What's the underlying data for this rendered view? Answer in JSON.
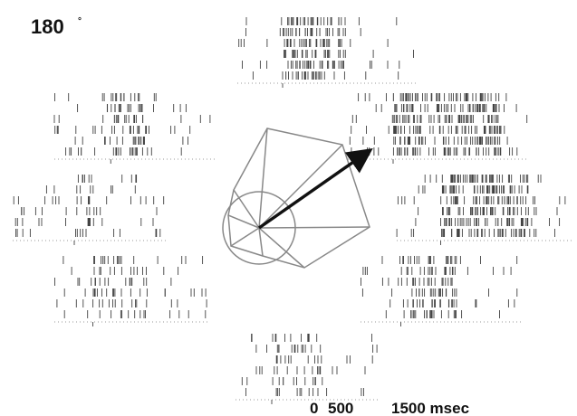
{
  "figure": {
    "direction_label": "180",
    "degree_mark": "°",
    "scale_ticks": [
      "0",
      "500",
      "1500 msec"
    ]
  },
  "colors": {
    "ink": "#111111",
    "line": "#888888",
    "background": "#ffffff"
  }
}
